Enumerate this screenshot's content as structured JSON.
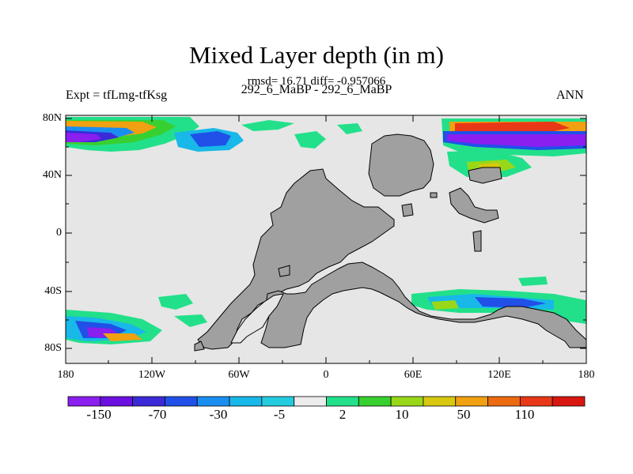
{
  "title": "Mixed Layer depth (in m)",
  "stats": "rmsd= 16.71 diff= -0.957066",
  "runs": "292_6_MaBP - 292_6_MaBP",
  "expt": "Expt = tfLmg-tfKsg",
  "season": "ANN",
  "lat_labels": [
    "80N",
    "40N",
    "0",
    "40S",
    "80S"
  ],
  "lon_labels": [
    "180",
    "120W",
    "60W",
    "0",
    "60E",
    "120E",
    "180"
  ],
  "colorbar": {
    "labels": [
      "-150",
      "-70",
      "-30",
      "-5",
      "2",
      "10",
      "50",
      "110"
    ],
    "colors": [
      "#8a1ff0",
      "#6a10e0",
      "#3c2ad8",
      "#2050e8",
      "#1a8ef0",
      "#18b8e8",
      "#24cce0",
      "#ececec",
      "#22e08a",
      "#38d030",
      "#98d818",
      "#d8c810",
      "#f0a010",
      "#ec6a10",
      "#e83818",
      "#d81810"
    ]
  },
  "colors": {
    "land": "#a0a0a0",
    "ocean": "#e6e6e6"
  }
}
